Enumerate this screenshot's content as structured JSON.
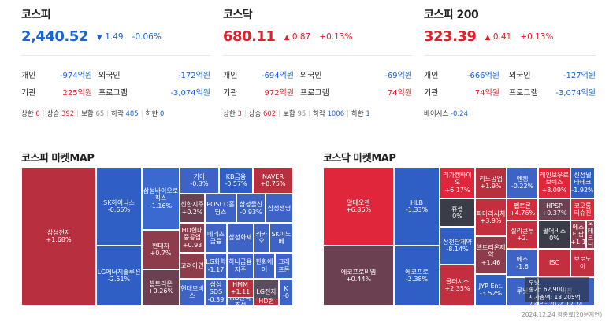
{
  "colors": {
    "up": "#e0202a",
    "down": "#1a64d8"
  },
  "indices": [
    {
      "title": "코스피",
      "price": "2,440.52",
      "arrow": "▼",
      "change": "1.49",
      "pct": "-0.06%",
      "dir": "neg",
      "rows": [
        {
          "l1": "개인",
          "v1": "-974억원",
          "c1": "neg",
          "l2": "외국인",
          "v2": "-172억원",
          "c2": "neg"
        },
        {
          "l1": "기관",
          "v1": "225억원",
          "c1": "pos",
          "l2": "프로그램",
          "v2": "-3,074억원",
          "c2": "neg"
        }
      ],
      "stats": {
        "upper_label": "상한",
        "upper": "0",
        "rise_label": "상승",
        "rise": "392",
        "flat_label": "보합",
        "flat": "65",
        "fall_label": "하락",
        "fall": "485",
        "lower_label": "하한",
        "lower": "0"
      }
    },
    {
      "title": "코스닥",
      "price": "680.11",
      "arrow": "▲",
      "change": "0.87",
      "pct": "+0.13%",
      "dir": "pos",
      "rows": [
        {
          "l1": "개인",
          "v1": "-694억원",
          "c1": "neg",
          "l2": "외국인",
          "v2": "-69억원",
          "c2": "neg"
        },
        {
          "l1": "기관",
          "v1": "972억원",
          "c1": "pos",
          "l2": "프로그램",
          "v2": "74억원",
          "c2": "pos"
        }
      ],
      "stats": {
        "upper_label": "상한",
        "upper": "3",
        "rise_label": "상승",
        "rise": "602",
        "flat_label": "보합",
        "flat": "95",
        "fall_label": "하락",
        "fall": "1006",
        "lower_label": "하한",
        "lower": "1"
      }
    },
    {
      "title": "코스피 200",
      "price": "323.39",
      "arrow": "▲",
      "change": "0.41",
      "pct": "+0.13%",
      "dir": "pos",
      "rows": [
        {
          "l1": "개인",
          "v1": "-666억원",
          "c1": "neg",
          "l2": "외국인",
          "v2": "-127억원",
          "c2": "neg"
        },
        {
          "l1": "기관",
          "v1": "74억원",
          "c1": "pos",
          "l2": "프로그램",
          "v2": "-3,074억원",
          "c2": "neg"
        }
      ],
      "basis_label": "베이시스",
      "basis": "-0.24"
    }
  ],
  "maps": [
    {
      "title": "코스피 마켓MAP",
      "tiles": [
        {
          "name": "삼성전자",
          "pct": "+1.68%",
          "color": "#b8303f"
        },
        {
          "name": "SK하이닉스",
          "pct": "-0.65%",
          "color": "#2f5fc4"
        },
        {
          "name": "LG에너지솔루션",
          "pct": "-2.51%",
          "color": "#2f5fc4"
        },
        {
          "name": "삼성바이오로직스",
          "pct": "-1.16%",
          "color": "#3a6ad0"
        },
        {
          "name": "현대차",
          "pct": "+0.7%",
          "color": "#8d3c4c"
        },
        {
          "name": "셀트리온",
          "pct": "+0.26%",
          "color": "#6b4050"
        },
        {
          "name": "기아",
          "pct": "-0.3%",
          "color": "#3d63c6"
        },
        {
          "name": "KB금융",
          "pct": "-0.57%",
          "color": "#2f5fc4"
        },
        {
          "name": "NAVER",
          "pct": "+0.75%",
          "color": "#b8303f"
        },
        {
          "name": "신한지주",
          "pct": "+0.2%",
          "color": "#6b4050"
        },
        {
          "name": "POSCO홀딩스",
          "pct": "",
          "color": "#3d63c6"
        },
        {
          "name": "삼성물산",
          "pct": "-0.93%",
          "color": "#3d63c6"
        },
        {
          "name": "삼성생명",
          "pct": "",
          "color": "#3d63c6"
        },
        {
          "name": "HD현대중공업",
          "pct": "+0.93",
          "color": "#8d3c4c"
        },
        {
          "name": "메리츠금융",
          "pct": "",
          "color": "#3d63c6"
        },
        {
          "name": "삼성화재",
          "pct": "",
          "color": "#3d63c6"
        },
        {
          "name": "카카오",
          "pct": "",
          "color": "#3d63c6"
        },
        {
          "name": "SK이노베",
          "pct": "",
          "color": "#3d63c6"
        },
        {
          "name": "고려아연",
          "pct": "",
          "color": "#8d3c4c"
        },
        {
          "name": "LG화학",
          "pct": "-1.17",
          "color": "#3d63c6"
        },
        {
          "name": "하나금융지주",
          "pct": "",
          "color": "#3d63c6"
        },
        {
          "name": "한화에어",
          "pct": "",
          "color": "#3d63c6"
        },
        {
          "name": "크래프톤",
          "pct": "",
          "color": "#3d63c6"
        },
        {
          "name": "현대모비스",
          "pct": "",
          "color": "#3d63c6"
        },
        {
          "name": "삼성SDS",
          "pct": "-0.39",
          "color": "#3d63c6"
        },
        {
          "name": "HMM",
          "pct": "+1.11",
          "color": "#b8303f"
        },
        {
          "name": "HD한국조선",
          "pct": "",
          "color": "#3d63c6"
        },
        {
          "name": "LG전자",
          "pct": "",
          "color": "#5a4b5e"
        },
        {
          "name": "HD현",
          "pct": "",
          "color": "#b8303f"
        },
        {
          "name": "K",
          "pct": "-0",
          "color": "#3d63c6"
        }
      ]
    },
    {
      "title": "코스닥 마켓MAP",
      "tiles": [
        {
          "name": "알테오젠",
          "pct": "+6.86%",
          "color": "#e0263a"
        },
        {
          "name": "에코프로비엠",
          "pct": "+0.44%",
          "color": "#6b4050"
        },
        {
          "name": "HLB",
          "pct": "-1.33%",
          "color": "#2f5fc4"
        },
        {
          "name": "에코프로",
          "pct": "-2.38%",
          "color": "#2f5fc4"
        },
        {
          "name": "리가켐바이오",
          "pct": "+6.17%",
          "color": "#e0263a"
        },
        {
          "name": "휴젤",
          "pct": "0%",
          "color": "#3a3d48"
        },
        {
          "name": "삼천당제약",
          "pct": "-8.14%",
          "color": "#2f5fc4"
        },
        {
          "name": "클래시스",
          "pct": "+2.35%",
          "color": "#c42f40"
        },
        {
          "name": "리노공업",
          "pct": "+1.9%",
          "color": "#b8303f"
        },
        {
          "name": "엔켐",
          "pct": "-0.22%",
          "color": "#3d63c6"
        },
        {
          "name": "레인보우로보틱스",
          "pct": "+8.09%",
          "color": "#e0263a"
        },
        {
          "name": "신성델타테크",
          "pct": "-1.92%",
          "color": "#2f5fc4"
        },
        {
          "name": "파마리서치",
          "pct": "+3.9%",
          "color": "#c42f40"
        },
        {
          "name": "펩트론",
          "pct": "+4.76%",
          "color": "#d72b3c"
        },
        {
          "name": "HPSP",
          "pct": "+0.37%",
          "color": "#6b4050"
        },
        {
          "name": "코오롱티슈진",
          "pct": "",
          "color": "#d72b3c"
        },
        {
          "name": "셀트리온제약",
          "pct": "+1.46",
          "color": "#8d3c4c"
        },
        {
          "name": "실리콘투",
          "pct": "+2.",
          "color": "#c42f40"
        },
        {
          "name": "펄어비스",
          "pct": "0%",
          "color": "#3a3d48"
        },
        {
          "name": "에스티팜",
          "pct": "+1.1",
          "color": "#8d3c4c"
        },
        {
          "name": "이오테크닉스",
          "pct": "",
          "color": "#8d3c4c"
        },
        {
          "name": "JYP Ent.",
          "pct": "-3.52%",
          "color": "#2f5fc4"
        },
        {
          "name": "에스",
          "pct": "-1.6",
          "color": "#3d63c6"
        },
        {
          "name": "루닛",
          "pct": "",
          "color": "#3d63c6"
        },
        {
          "name": "ISC",
          "pct": "",
          "color": "#c42f40"
        },
        {
          "name": "보로노이",
          "pct": "",
          "color": "#c42f40"
        },
        {
          "name": "서진",
          "pct": "",
          "color": "#3d63c6"
        }
      ],
      "tooltip": {
        "name": "루닛",
        "price_label": "종가:",
        "price": "62,900",
        "cap_label": "시가총액:",
        "cap": "18,205억",
        "date_label": "기준일:",
        "date": "2024.12.24"
      }
    }
  ],
  "footnote": "2024.12.24 장종료(20분지연)"
}
